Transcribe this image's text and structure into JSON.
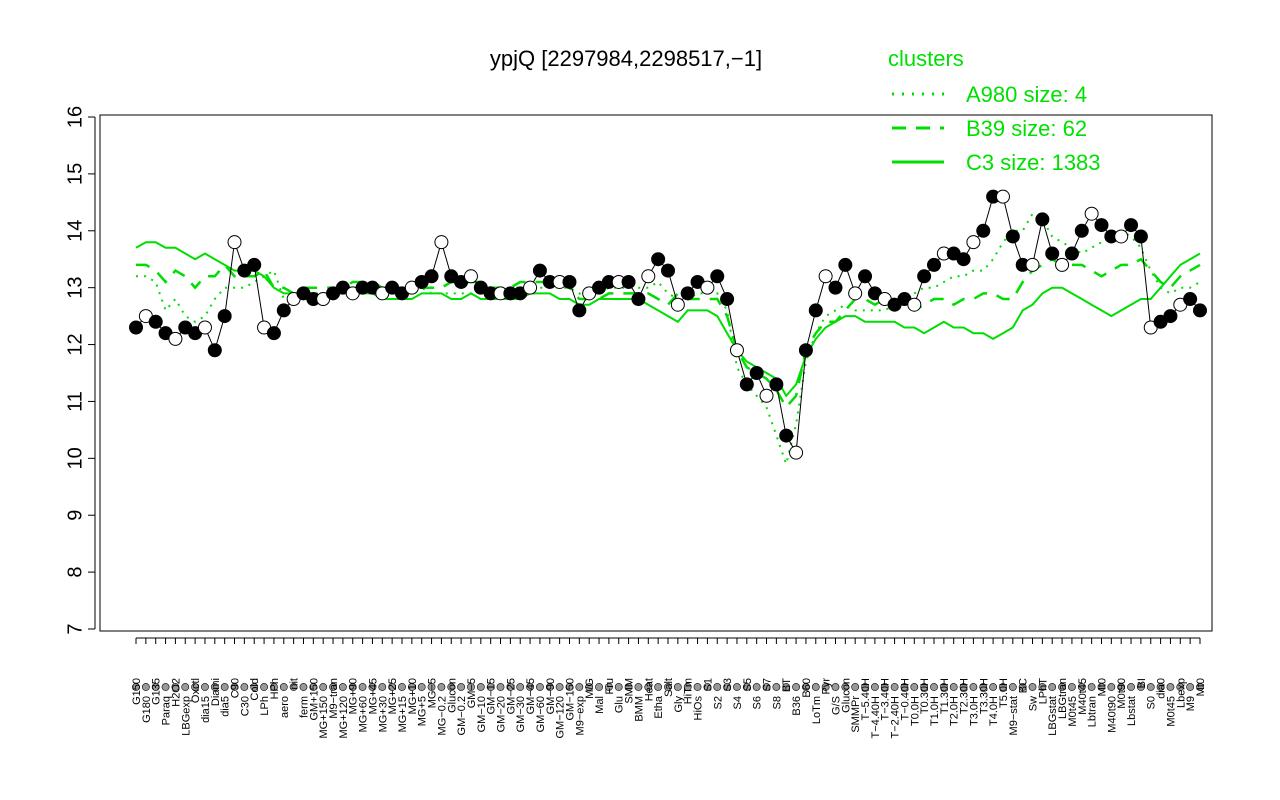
{
  "chart_data": {
    "type": "line",
    "title": "ypjQ [2297984,2298517,−1]",
    "xlabel": "",
    "ylabel": "",
    "ylim": [
      7,
      16
    ],
    "yticks": [
      "7",
      "8",
      "9",
      "10",
      "11",
      "12",
      "13",
      "14",
      "15",
      "16"
    ],
    "grid": false,
    "legend": {
      "title": "clusters",
      "placement": "top-right",
      "entries": [
        {
          "label": "A980 size: 4",
          "style": "dotted",
          "color": "#00dd00"
        },
        {
          "label": "B39 size: 62",
          "style": "dashed",
          "color": "#00dd00"
        },
        {
          "label": "C3 size: 1383",
          "style": "solid",
          "color": "#00dd00"
        }
      ]
    },
    "x_tick_labels": [
      "G150",
      "G180",
      "G135",
      "Paraq",
      "H2O2",
      "LBGexp",
      "Oxctl",
      "dia15",
      "Diami",
      "dia5",
      "C90",
      "C30",
      "Cold",
      "LPh",
      "HPh",
      "aero",
      "nit",
      "ferm",
      "GM+150",
      "MG+150",
      "M9−tran",
      "MG+120",
      "MG+90",
      "MG+60",
      "MG+45",
      "MG+30",
      "MG+25",
      "MG+15",
      "MG+10",
      "MG+5",
      "MG−5",
      "MG−0.2",
      "Glucon",
      "GM−0.2",
      "GM−5",
      "GM−10",
      "GM−15",
      "GM−20",
      "GM−25",
      "GM−30",
      "GM−45",
      "GM−60",
      "GM−90",
      "GM−120",
      "GM−150",
      "M9−exp",
      "M/G",
      "Mal",
      "Fru",
      "Glu",
      "SMM",
      "BMM",
      "Heat",
      "Etha",
      "Salt",
      "Gly",
      "HiTm",
      "HiOs",
      "S1",
      "S2",
      "S3",
      "S4",
      "S5",
      "S6",
      "S7",
      "S8",
      "BT",
      "B36",
      "B60",
      "LoTm",
      "Pyr",
      "G/S",
      "Glucon",
      "SMMPr",
      "T−5.40H",
      "T−4.40H",
      "T−3.40H",
      "T−2.40H",
      "T−0.40H",
      "T0.0H",
      "T0.30H",
      "T1.0H",
      "T1.30H",
      "T2.0H",
      "T2.30H",
      "T3.0H",
      "T3.30H",
      "T4.0H",
      "T5.0H",
      "M9−stat",
      "BC",
      "Sw",
      "LPhT",
      "LBGstat",
      "LBGtran",
      "M0t45",
      "M40t45",
      "Lbtran",
      "Mt0",
      "M40t90",
      "M0t90",
      "Lbstat",
      "BI",
      "S0",
      "dia0",
      "M0t45",
      "Lbexp",
      "M9",
      "Mt0"
    ],
    "x": [
      1,
      2,
      3,
      4,
      5,
      6,
      7,
      8,
      9,
      10,
      11,
      12,
      13,
      14,
      15,
      16,
      17,
      18,
      19,
      20,
      21,
      22,
      23,
      24,
      25,
      26,
      27,
      28,
      29,
      30,
      31,
      32,
      33,
      34,
      35,
      36,
      37,
      38,
      39,
      40,
      41,
      42,
      43,
      44,
      45,
      46,
      47,
      48,
      49,
      50,
      51,
      52,
      53,
      54,
      55,
      56,
      57,
      58,
      59,
      60,
      61,
      62,
      63,
      64,
      65,
      66,
      67,
      68,
      69,
      70,
      71,
      72,
      73,
      74,
      75,
      76,
      77,
      78,
      79,
      80,
      81,
      82,
      83,
      84,
      85,
      86,
      87,
      88,
      89,
      90,
      91,
      92,
      93,
      94,
      95,
      96,
      97,
      98,
      99,
      100,
      101,
      102,
      103,
      104,
      105,
      106,
      107,
      108,
      109
    ],
    "series": [
      {
        "name": "A980 size: 4",
        "style": "dotted",
        "values": [
          13.2,
          13.2,
          13.1,
          12.6,
          12.8,
          12.5,
          12.4,
          12.5,
          12.8,
          13.0,
          13.0,
          13.0,
          13.1,
          13.2,
          13.3,
          12.8,
          12.9,
          12.8,
          12.9,
          12.9,
          12.9,
          13.0,
          13.0,
          13.0,
          13.0,
          12.9,
          12.9,
          12.9,
          12.9,
          13.0,
          12.9,
          12.9,
          12.9,
          12.9,
          12.9,
          13.0,
          13.0,
          13.0,
          13.0,
          13.0,
          13.0,
          13.0,
          13.0,
          13.0,
          13.0,
          12.9,
          12.8,
          12.9,
          13.0,
          13.0,
          13.0,
          13.0,
          13.0,
          13.1,
          12.9,
          12.8,
          12.8,
          12.9,
          12.9,
          12.9,
          12.6,
          11.6,
          11.3,
          11.1,
          10.9,
          10.4,
          9.9,
          10.6,
          11.7,
          12.2,
          12.5,
          12.6,
          12.7,
          12.6,
          12.6,
          12.6,
          12.6,
          12.7,
          12.8,
          12.9,
          13.0,
          13.0,
          13.1,
          13.2,
          13.2,
          13.3,
          13.3,
          13.5,
          13.8,
          14.0,
          14.0,
          14.3,
          14.2,
          13.9,
          13.8,
          13.7,
          13.6,
          13.7,
          13.8,
          13.9,
          14.0,
          13.9,
          13.7,
          13.3,
          13.0,
          12.9,
          13.0,
          13.0,
          13.1
        ]
      },
      {
        "name": "B39 size: 62",
        "style": "dashed",
        "values": [
          13.4,
          13.4,
          13.3,
          13.1,
          13.3,
          13.2,
          13.0,
          13.2,
          13.2,
          13.4,
          13.2,
          13.2,
          13.2,
          13.3,
          13.0,
          13.0,
          12.9,
          13.0,
          13.0,
          13.0,
          13.0,
          13.0,
          13.1,
          13.1,
          13.1,
          13.0,
          13.0,
          13.0,
          13.0,
          13.0,
          13.0,
          13.0,
          13.1,
          13.1,
          13.1,
          13.1,
          13.0,
          13.0,
          13.0,
          13.1,
          13.1,
          13.1,
          13.1,
          13.1,
          13.0,
          12.8,
          12.8,
          12.8,
          12.9,
          12.9,
          12.9,
          12.9,
          12.9,
          12.8,
          12.7,
          12.9,
          12.8,
          12.8,
          12.8,
          12.8,
          12.5,
          11.9,
          11.6,
          11.5,
          11.4,
          11.2,
          10.9,
          11.1,
          11.9,
          12.2,
          12.4,
          12.4,
          12.6,
          12.8,
          12.8,
          12.7,
          12.8,
          12.8,
          12.7,
          12.6,
          12.7,
          12.8,
          12.8,
          12.7,
          12.8,
          12.8,
          12.9,
          12.9,
          12.8,
          12.8,
          13.1,
          13.3,
          13.4,
          13.5,
          13.4,
          13.4,
          13.4,
          13.3,
          13.2,
          13.3,
          13.4,
          13.4,
          13.5,
          13.3,
          13.1,
          13.0,
          13.2,
          13.3,
          13.4
        ]
      },
      {
        "name": "C3 size: 1383",
        "style": "solid",
        "values": [
          13.7,
          13.8,
          13.8,
          13.7,
          13.7,
          13.6,
          13.5,
          13.6,
          13.5,
          13.4,
          13.3,
          13.3,
          13.3,
          13.2,
          13.0,
          12.9,
          12.9,
          12.9,
          12.9,
          12.8,
          12.9,
          12.9,
          12.9,
          12.9,
          12.9,
          12.8,
          12.8,
          12.8,
          12.8,
          12.9,
          12.9,
          12.9,
          12.8,
          12.8,
          12.9,
          12.8,
          12.8,
          12.8,
          12.8,
          12.8,
          12.9,
          12.9,
          12.9,
          12.8,
          12.8,
          12.7,
          12.7,
          12.8,
          12.8,
          12.8,
          12.8,
          12.8,
          12.7,
          12.6,
          12.5,
          12.4,
          12.6,
          12.6,
          12.6,
          12.5,
          12.2,
          11.9,
          11.7,
          11.6,
          11.5,
          11.4,
          11.1,
          11.3,
          11.8,
          12.1,
          12.3,
          12.4,
          12.5,
          12.5,
          12.4,
          12.4,
          12.4,
          12.4,
          12.3,
          12.3,
          12.2,
          12.3,
          12.4,
          12.3,
          12.3,
          12.2,
          12.2,
          12.1,
          12.2,
          12.3,
          12.6,
          12.7,
          12.9,
          13.0,
          13.0,
          12.9,
          12.8,
          12.7,
          12.6,
          12.5,
          12.6,
          12.7,
          12.8,
          12.8,
          13.0,
          13.2,
          13.4,
          13.5,
          13.6
        ]
      },
      {
        "name": "",
        "style": "points",
        "values": [
          12.3,
          12.5,
          12.4,
          12.2,
          12.1,
          12.3,
          12.2,
          12.3,
          11.9,
          12.5,
          13.8,
          13.3,
          13.4,
          12.3,
          12.2,
          12.6,
          12.8,
          12.9,
          12.8,
          12.8,
          12.9,
          13.0,
          12.9,
          13.0,
          13.0,
          12.9,
          13.0,
          12.9,
          13.0,
          13.1,
          13.2,
          13.8,
          13.2,
          13.1,
          13.2,
          13.0,
          12.9,
          12.9,
          12.9,
          12.9,
          13.0,
          13.3,
          13.1,
          13.1,
          13.1,
          12.6,
          12.9,
          13.0,
          13.1,
          13.1,
          13.1,
          12.8,
          13.2,
          13.5,
          13.3,
          12.7,
          12.9,
          13.1,
          13.0,
          13.2,
          12.8,
          11.9,
          11.3,
          11.5,
          11.1,
          11.3,
          10.4,
          10.1,
          11.9,
          12.6,
          13.2,
          13.0,
          13.4,
          12.9,
          13.2,
          12.9,
          12.8,
          12.7,
          12.8,
          12.7,
          13.2,
          13.4,
          13.6,
          13.6,
          13.5,
          13.8,
          14.0,
          14.6,
          14.6,
          13.9,
          13.4,
          13.4,
          14.2,
          13.6,
          13.4,
          13.6,
          14.0,
          14.3,
          14.1,
          13.9,
          13.9,
          14.1,
          13.9,
          12.3,
          12.4,
          12.5,
          12.7,
          12.8,
          12.6
        ]
      }
    ]
  }
}
